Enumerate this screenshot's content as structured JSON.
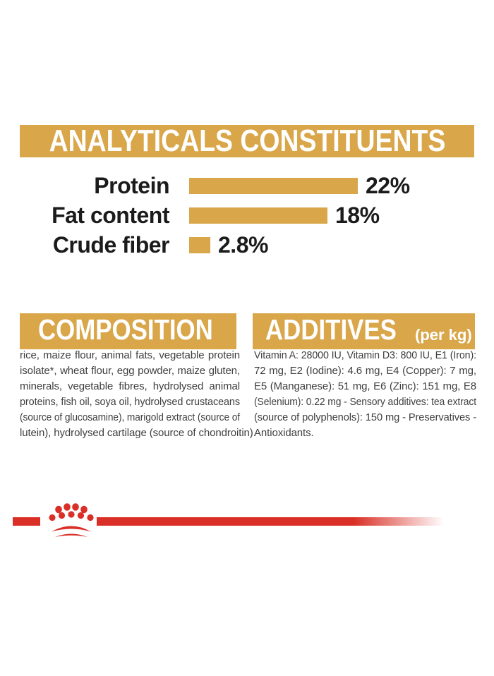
{
  "colors": {
    "gold": "#D9A64A",
    "red": "#D92F26",
    "label_text": "#1B1B1B",
    "body_text": "#3F3F3F",
    "heading_text": "#FFFFFF",
    "background": "#FFFFFF"
  },
  "sections": {
    "analyticals": {
      "title": "ANALYTICALS CONSTITUENTS"
    },
    "composition": {
      "title": "COMPOSITION",
      "lines": [
        "rice, maize flour, animal fats, vegetable protein",
        "isolate*, wheat flour, egg powder, maize gluten,",
        "minerals, vegetable fibres, hydrolysed animal",
        "proteins, fish oil, soya oil, hydrolysed crustaceans",
        "(source of glucosamine), marigold extract (source of",
        "lutein), hydrolysed cartilage (source of chondroitin)."
      ]
    },
    "additives": {
      "title": "ADDITIVES",
      "unit_label": "(per kg)",
      "lines": [
        "Vitamin A: 28000 IU, Vitamin D3: 800 IU, E1 (Iron):",
        "72 mg, E2 (Iodine): 4.6 mg, E4 (Copper): 7 mg,",
        "E5 (Manganese): 51 mg, E6 (Zinc): 151 mg, E8",
        "(Selenium): 0.22 mg - Sensory additives: tea extract",
        "(source of polyphenols): 150 mg - Preservatives -",
        "Antioxidants."
      ]
    }
  },
  "chart_data": {
    "type": "bar",
    "orientation": "horizontal",
    "title": "ANALYTICALS CONSTITUENTS",
    "categories": [
      "Protein",
      "Fat content",
      "Crude fiber"
    ],
    "values": [
      22,
      18,
      2.8
    ],
    "value_labels": [
      "22%",
      "18%",
      "2.8%"
    ],
    "unit": "%",
    "xlim": [
      0,
      22
    ],
    "bar_color": "#D9A64A",
    "grid": false,
    "legend": false
  },
  "footer": {
    "logo": "royal-canin-crown-logo"
  }
}
